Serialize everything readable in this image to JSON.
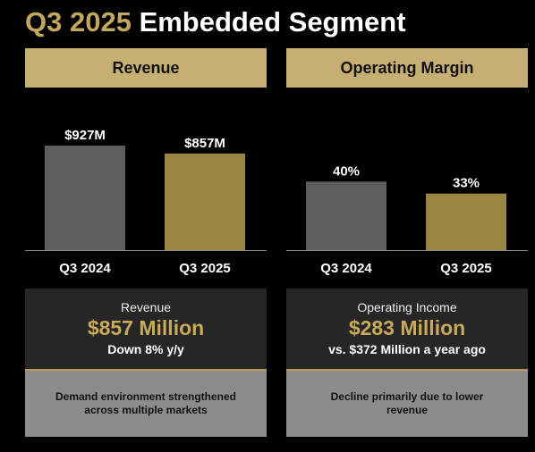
{
  "title": {
    "highlight": "Q3 2025",
    "rest": "Embedded Segment"
  },
  "panels": [
    {
      "header": "Revenue",
      "stat": {
        "label": "Revenue",
        "value": "$857 Million",
        "sub": "Down 8% y/y"
      },
      "note": "Demand environment strengthened across multiple markets"
    },
    {
      "header": "Operating Margin",
      "stat": {
        "label": "Operating Income",
        "value": "$283 Million",
        "sub": "vs. $372 Million a year ago"
      },
      "note": "Decline primarily due to lower revenue"
    }
  ],
  "colors": {
    "prior": "#5d5d5d",
    "current": "#9a8545",
    "accent": "#c2a75f",
    "header_bg": "#c6af73"
  },
  "chart_data": [
    {
      "type": "bar",
      "title": "Revenue",
      "categories": [
        "Q3 2024",
        "Q3 2025"
      ],
      "values": [
        927,
        857
      ],
      "data_labels": [
        "$927M",
        "$857M"
      ],
      "unit": "$M",
      "ylim": [
        0,
        927
      ]
    },
    {
      "type": "bar",
      "title": "Operating Margin",
      "categories": [
        "Q3 2024",
        "Q3 2025"
      ],
      "values": [
        40,
        33
      ],
      "data_labels": [
        "40%",
        "33%"
      ],
      "unit": "%",
      "ylim": [
        0,
        61
      ]
    }
  ]
}
